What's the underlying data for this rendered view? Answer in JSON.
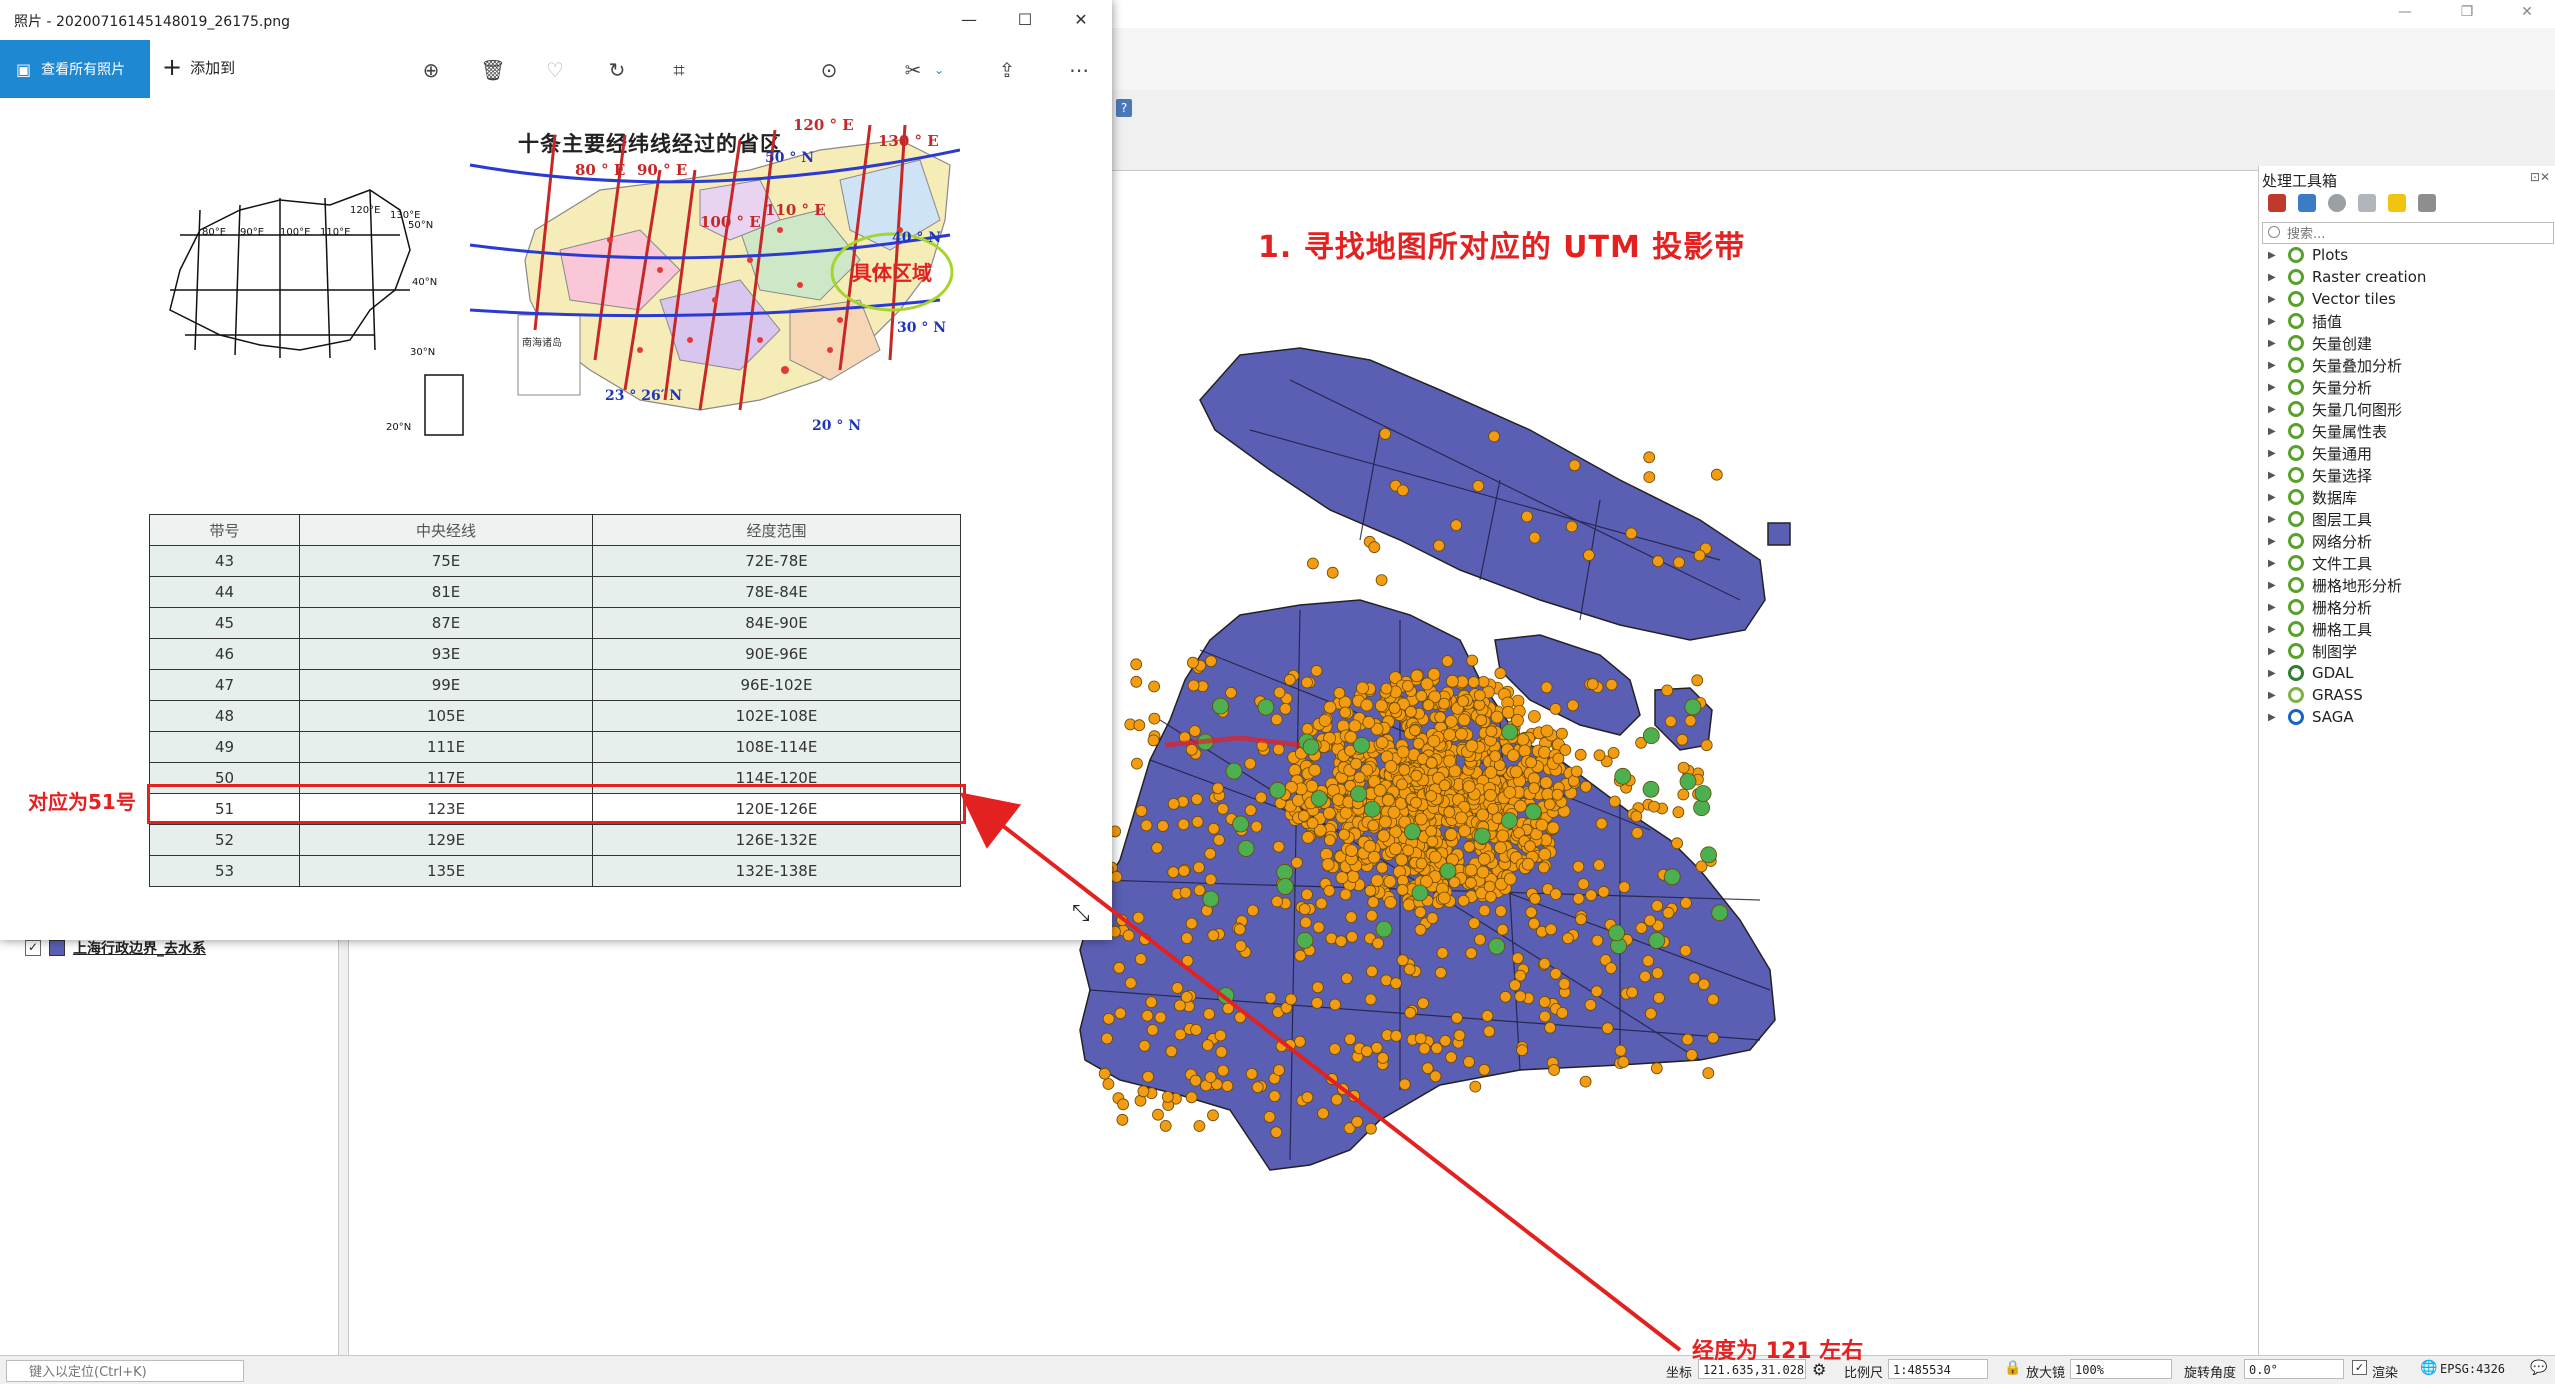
{
  "photos": {
    "title": "照片 - 20200716145148019_26175.png",
    "view_all_label": "查看所有照片",
    "add_to_label": "添加到"
  },
  "image": {
    "title": "十条主要经纬线经过的省区",
    "circle_label": "具体区域",
    "labels": {
      "lon_80": "80 ° E",
      "lon_90": "90 ° E",
      "lon_100": "100 ° E",
      "lon_110": "110 ° E",
      "lon_120": "120 ° E",
      "lon_130": "130 ° E",
      "lat_50": "50 ° N",
      "lat_40": "40 ° N",
      "lat_30": "30 ° N",
      "lat_23": "23 ° 26′ N",
      "lat_20": "20 ° N",
      "inset": "南海诸岛"
    },
    "sketch_labels": {
      "s80": "80°E",
      "s90": "90°E",
      "s100": "100°E",
      "s110": "110°E",
      "s120": "120°E",
      "s130": "130°E",
      "s50": "50°N",
      "s40": "40°N",
      "s30": "30°N",
      "s20": "20°N"
    },
    "table": {
      "headers": [
        "带号",
        "中央经线",
        "经度范围"
      ],
      "rows": [
        [
          "43",
          "75E",
          "72E-78E"
        ],
        [
          "44",
          "81E",
          "78E-84E"
        ],
        [
          "45",
          "87E",
          "84E-90E"
        ],
        [
          "46",
          "93E",
          "90E-96E"
        ],
        [
          "47",
          "99E",
          "96E-102E"
        ],
        [
          "48",
          "105E",
          "102E-108E"
        ],
        [
          "49",
          "111E",
          "108E-114E"
        ],
        [
          "50",
          "117E",
          "114E-120E"
        ],
        [
          "51",
          "123E",
          "120E-126E"
        ],
        [
          "52",
          "129E",
          "126E-132E"
        ],
        [
          "53",
          "135E",
          "132E-138E"
        ]
      ],
      "highlight_zone": "51"
    }
  },
  "annotations": {
    "map_title": "1. 寻找地图所对应的 UTM 投影带",
    "zone_note": "对应为51号",
    "lon_note": "经度为 121 左右",
    "color": "#e32121"
  },
  "layers": {
    "layer_name": "上海行政边界_去水系"
  },
  "toolbox": {
    "title": "处理工具箱",
    "search_placeholder": "搜索...",
    "items": [
      {
        "label": "Plots",
        "icon": "q-icon"
      },
      {
        "label": "Raster creation",
        "icon": "q-icon"
      },
      {
        "label": "Vector tiles",
        "icon": "q-icon"
      },
      {
        "label": "插值",
        "icon": "q-icon"
      },
      {
        "label": "矢量创建",
        "icon": "q-icon"
      },
      {
        "label": "矢量叠加分析",
        "icon": "q-icon"
      },
      {
        "label": "矢量分析",
        "icon": "q-icon"
      },
      {
        "label": "矢量几何图形",
        "icon": "q-icon"
      },
      {
        "label": "矢量属性表",
        "icon": "q-icon"
      },
      {
        "label": "矢量通用",
        "icon": "q-icon"
      },
      {
        "label": "矢量选择",
        "icon": "q-icon"
      },
      {
        "label": "数据库",
        "icon": "q-icon"
      },
      {
        "label": "图层工具",
        "icon": "q-icon"
      },
      {
        "label": "网络分析",
        "icon": "q-icon"
      },
      {
        "label": "文件工具",
        "icon": "q-icon"
      },
      {
        "label": "栅格地形分析",
        "icon": "q-icon"
      },
      {
        "label": "栅格分析",
        "icon": "q-icon"
      },
      {
        "label": "栅格工具",
        "icon": "q-icon"
      },
      {
        "label": "制图学",
        "icon": "q-icon"
      },
      {
        "label": "GDAL",
        "icon": "gdal-icon"
      },
      {
        "label": "GRASS",
        "icon": "grass-icon"
      },
      {
        "label": "SAGA",
        "icon": "saga-icon"
      }
    ]
  },
  "statusbar": {
    "locator_placeholder": "键入以定位(Ctrl+K)",
    "coord_label": "坐标",
    "coord_value": "121.635,31.028",
    "scale_label": "比例尺",
    "scale_value": "1:485534",
    "magnifier_label": "放大镜",
    "magnifier_value": "100%",
    "rotation_label": "旋转角度",
    "rotation_value": "0.0°",
    "render_label": "渲染",
    "crs_label": "EPSG:4326"
  },
  "map": {
    "polygon_color": "#5b5fb3",
    "point_color": "#f39c12",
    "green_point_color": "#4caf50"
  }
}
